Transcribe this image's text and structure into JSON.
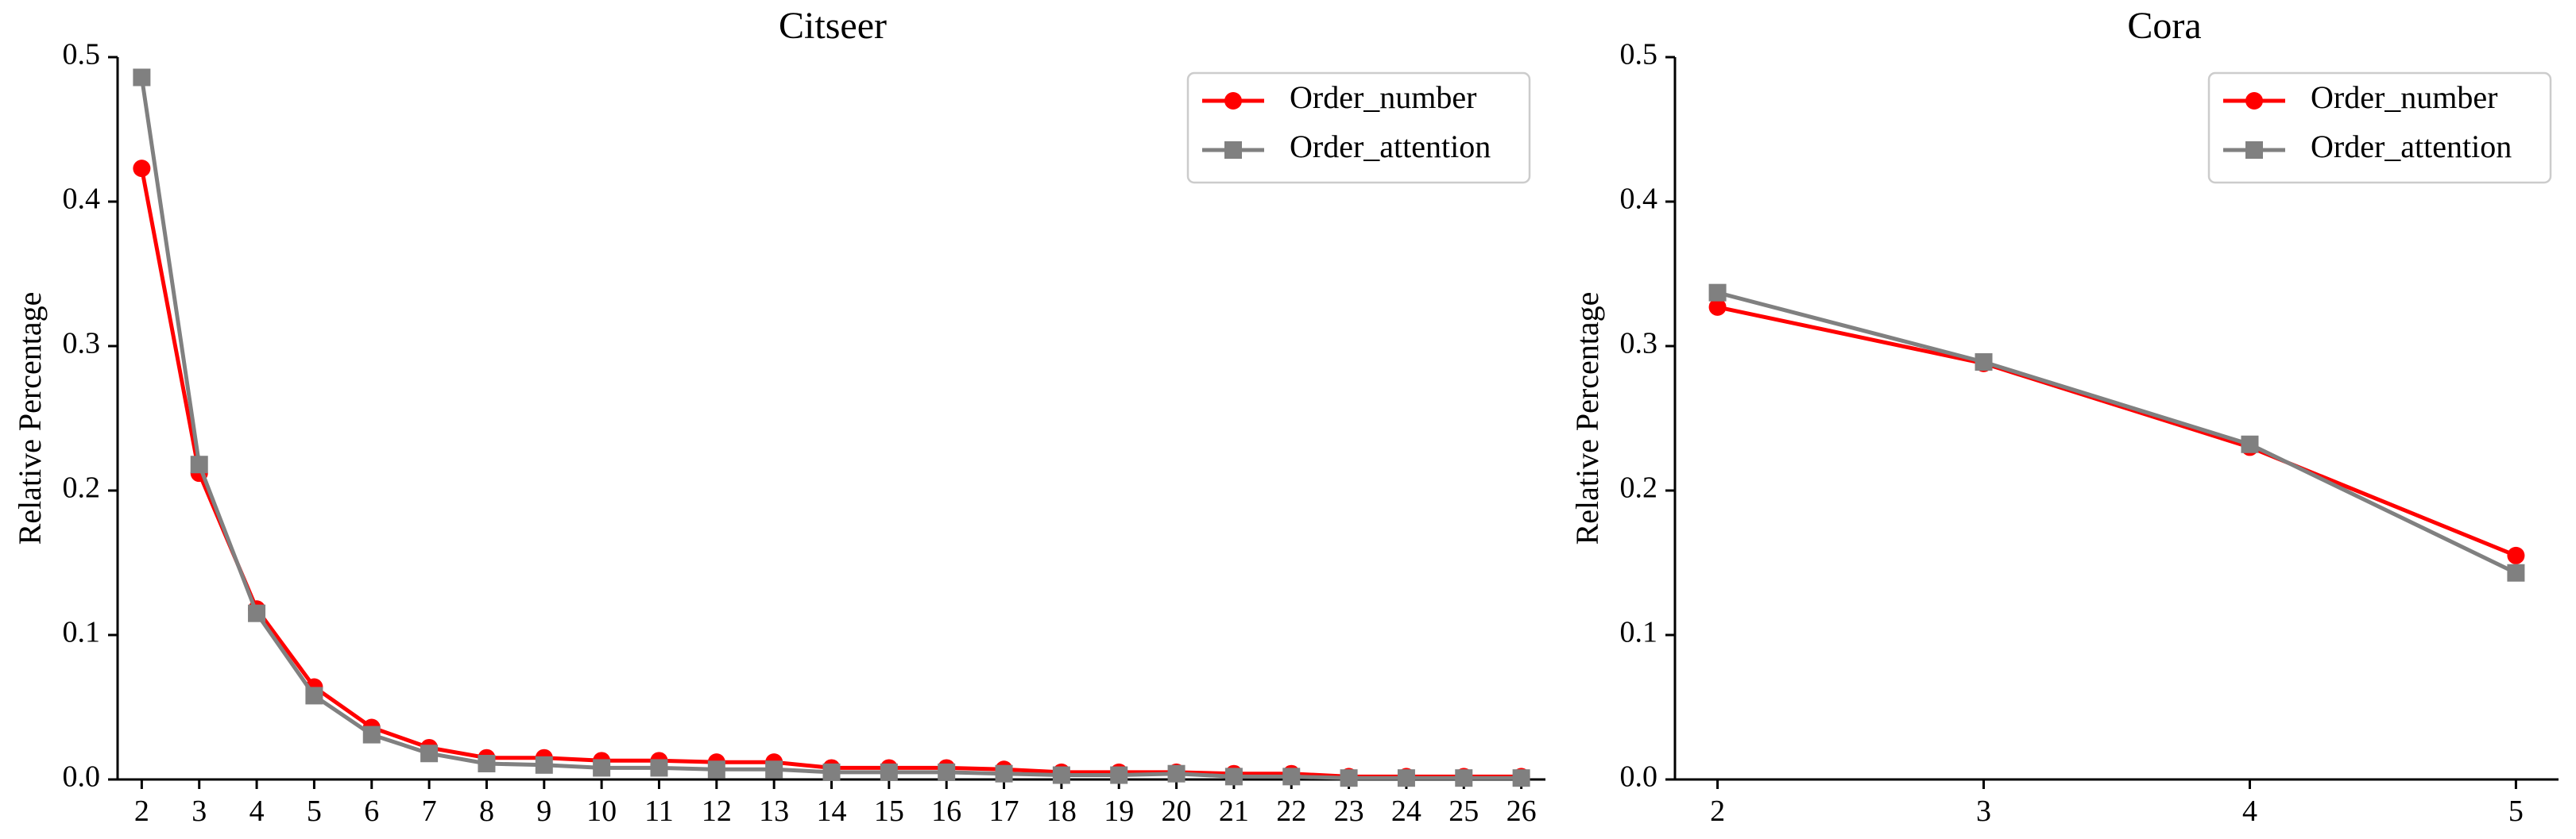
{
  "chart_data": [
    {
      "type": "line",
      "title": "Citseer",
      "xlabel": "",
      "ylabel": "Relative Percentage",
      "ylim": [
        0,
        0.5
      ],
      "yticks": [
        "0.0",
        "0.1",
        "0.2",
        "0.3",
        "0.4",
        "0.5"
      ],
      "grid": false,
      "legend_position": "top-right",
      "x": [
        2,
        3,
        4,
        5,
        6,
        7,
        8,
        9,
        10,
        11,
        12,
        13,
        14,
        15,
        16,
        17,
        18,
        19,
        20,
        21,
        22,
        23,
        24,
        25,
        26
      ],
      "series": [
        {
          "name": "Order_number",
          "color": "#ff0000",
          "marker": "circle",
          "values": [
            0.423,
            0.212,
            0.118,
            0.064,
            0.036,
            0.022,
            0.015,
            0.015,
            0.013,
            0.013,
            0.012,
            0.012,
            0.008,
            0.008,
            0.008,
            0.007,
            0.005,
            0.005,
            0.005,
            0.004,
            0.004,
            0.002,
            0.002,
            0.002,
            0.002
          ]
        },
        {
          "name": "Order_attention",
          "color": "#808080",
          "marker": "square",
          "values": [
            0.486,
            0.218,
            0.115,
            0.058,
            0.031,
            0.018,
            0.011,
            0.01,
            0.008,
            0.008,
            0.007,
            0.007,
            0.005,
            0.005,
            0.005,
            0.004,
            0.003,
            0.003,
            0.004,
            0.002,
            0.002,
            0.001,
            0.001,
            0.001,
            0.001
          ]
        }
      ]
    },
    {
      "type": "line",
      "title": "Cora",
      "xlabel": "",
      "ylabel": "Relative Percentage",
      "ylim": [
        0,
        0.5
      ],
      "yticks": [
        "0.0",
        "0.1",
        "0.2",
        "0.3",
        "0.4",
        "0.5"
      ],
      "grid": false,
      "legend_position": "top-right",
      "x": [
        2,
        3,
        4,
        5
      ],
      "series": [
        {
          "name": "Order_number",
          "color": "#ff0000",
          "marker": "circle",
          "values": [
            0.327,
            0.288,
            0.23,
            0.155
          ]
        },
        {
          "name": "Order_attention",
          "color": "#808080",
          "marker": "square",
          "values": [
            0.337,
            0.289,
            0.232,
            0.143
          ]
        }
      ]
    }
  ]
}
